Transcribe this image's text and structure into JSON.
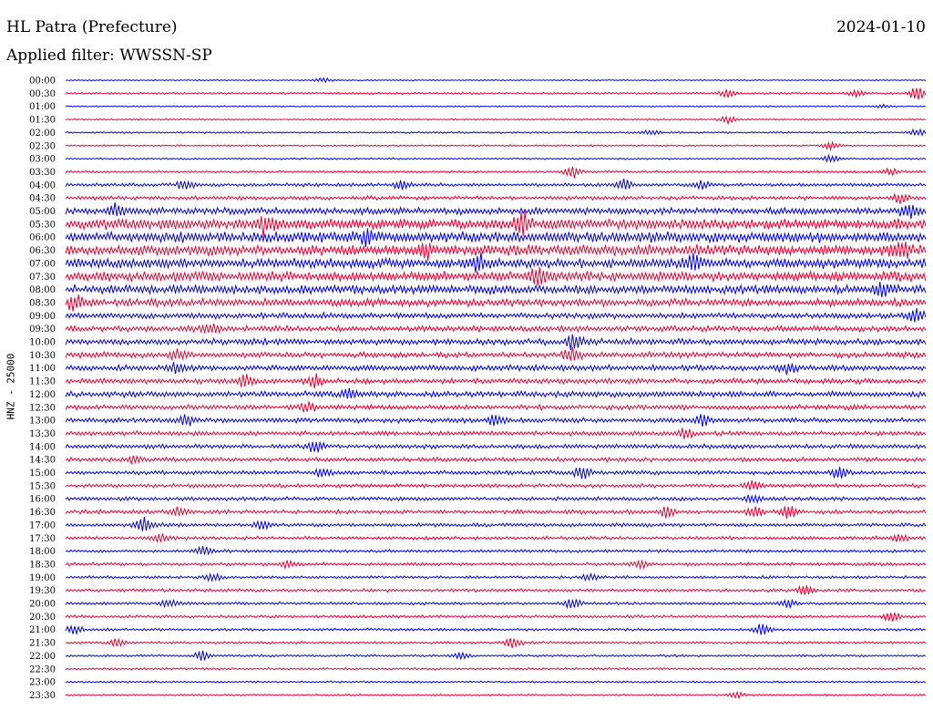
{
  "header": {
    "station": "HL Patra (Prefecture)",
    "date": "2024-01-10",
    "filter_label": "Applied filter:",
    "filter": "WWSSN-SP"
  },
  "channel": "HNZ - 25000",
  "colors": {
    "even": "#0000ee",
    "odd": "#ee0033",
    "text": "#000000"
  },
  "chart_data": {
    "type": "line",
    "title": "HL Patra (Prefecture)",
    "ylabel": "HNZ - 25000",
    "row_labels": [
      "00:00",
      "00:30",
      "01:00",
      "01:30",
      "02:00",
      "02:30",
      "03:00",
      "03:30",
      "04:00",
      "04:30",
      "05:00",
      "05:30",
      "06:00",
      "06:30",
      "07:00",
      "07:30",
      "08:00",
      "08:30",
      "09:00",
      "09:30",
      "10:00",
      "10:30",
      "11:00",
      "11:30",
      "12:00",
      "12:30",
      "13:00",
      "13:30",
      "14:00",
      "14:30",
      "15:00",
      "15:30",
      "16:00",
      "16:30",
      "17:00",
      "17:30",
      "18:00",
      "18:30",
      "19:00",
      "19:30",
      "20:00",
      "20:30",
      "21:00",
      "21:30",
      "22:00",
      "22:30",
      "23:00",
      "23:30"
    ],
    "amplitude": [
      0.7,
      1.0,
      0.6,
      0.8,
      0.9,
      0.8,
      0.9,
      1.2,
      1.8,
      2.0,
      3.5,
      5.5,
      5.5,
      5.5,
      5.0,
      5.0,
      4.5,
      4.0,
      3.0,
      3.0,
      3.2,
      3.0,
      3.0,
      2.8,
      3.0,
      2.6,
      2.5,
      2.4,
      2.3,
      2.2,
      2.1,
      2.0,
      2.0,
      2.1,
      1.9,
      1.8,
      1.6,
      1.7,
      1.5,
      1.6,
      1.5,
      1.5,
      1.4,
      1.3,
      1.2,
      1.1,
      1.0,
      0.9
    ],
    "events": [
      {
        "row": 0,
        "t": 0.3,
        "a": 2
      },
      {
        "row": 1,
        "t": 0.77,
        "a": 4
      },
      {
        "row": 1,
        "t": 0.92,
        "a": 4
      },
      {
        "row": 1,
        "t": 0.99,
        "a": 7
      },
      {
        "row": 2,
        "t": 0.95,
        "a": 2
      },
      {
        "row": 3,
        "t": 0.77,
        "a": 4
      },
      {
        "row": 4,
        "t": 0.68,
        "a": 3
      },
      {
        "row": 4,
        "t": 0.99,
        "a": 4
      },
      {
        "row": 5,
        "t": 0.89,
        "a": 5
      },
      {
        "row": 6,
        "t": 0.89,
        "a": 4
      },
      {
        "row": 7,
        "t": 0.59,
        "a": 6
      },
      {
        "row": 7,
        "t": 0.96,
        "a": 3
      },
      {
        "row": 8,
        "t": 0.14,
        "a": 5
      },
      {
        "row": 8,
        "t": 0.39,
        "a": 5
      },
      {
        "row": 8,
        "t": 0.65,
        "a": 6
      },
      {
        "row": 8,
        "t": 0.74,
        "a": 4
      },
      {
        "row": 9,
        "t": 0.97,
        "a": 5
      },
      {
        "row": 10,
        "t": 0.06,
        "a": 6
      },
      {
        "row": 10,
        "t": 0.98,
        "a": 8
      },
      {
        "row": 11,
        "t": 0.23,
        "a": 9
      },
      {
        "row": 11,
        "t": 0.53,
        "a": 12
      },
      {
        "row": 12,
        "t": 0.35,
        "a": 6
      },
      {
        "row": 13,
        "t": 0.42,
        "a": 7
      },
      {
        "row": 13,
        "t": 0.97,
        "a": 9
      },
      {
        "row": 14,
        "t": 0.48,
        "a": 8
      },
      {
        "row": 14,
        "t": 0.73,
        "a": 9
      },
      {
        "row": 15,
        "t": 0.55,
        "a": 7
      },
      {
        "row": 16,
        "t": 0.95,
        "a": 7
      },
      {
        "row": 17,
        "t": 0.01,
        "a": 6
      },
      {
        "row": 18,
        "t": 0.99,
        "a": 7
      },
      {
        "row": 19,
        "t": 0.17,
        "a": 5
      },
      {
        "row": 20,
        "t": 0.59,
        "a": 8
      },
      {
        "row": 21,
        "t": 0.13,
        "a": 5
      },
      {
        "row": 21,
        "t": 0.59,
        "a": 6
      },
      {
        "row": 22,
        "t": 0.13,
        "a": 5
      },
      {
        "row": 22,
        "t": 0.84,
        "a": 5
      },
      {
        "row": 23,
        "t": 0.21,
        "a": 6
      },
      {
        "row": 23,
        "t": 0.29,
        "a": 6
      },
      {
        "row": 24,
        "t": 0.33,
        "a": 5
      },
      {
        "row": 25,
        "t": 0.28,
        "a": 5
      },
      {
        "row": 26,
        "t": 0.14,
        "a": 5
      },
      {
        "row": 26,
        "t": 0.5,
        "a": 6
      },
      {
        "row": 26,
        "t": 0.74,
        "a": 5
      },
      {
        "row": 27,
        "t": 0.72,
        "a": 5
      },
      {
        "row": 28,
        "t": 0.29,
        "a": 6
      },
      {
        "row": 29,
        "t": 0.08,
        "a": 4
      },
      {
        "row": 30,
        "t": 0.3,
        "a": 5
      },
      {
        "row": 30,
        "t": 0.6,
        "a": 6
      },
      {
        "row": 30,
        "t": 0.9,
        "a": 6
      },
      {
        "row": 31,
        "t": 0.8,
        "a": 5
      },
      {
        "row": 32,
        "t": 0.8,
        "a": 5
      },
      {
        "row": 33,
        "t": 0.13,
        "a": 5
      },
      {
        "row": 33,
        "t": 0.7,
        "a": 5
      },
      {
        "row": 33,
        "t": 0.8,
        "a": 5
      },
      {
        "row": 33,
        "t": 0.84,
        "a": 7
      },
      {
        "row": 34,
        "t": 0.09,
        "a": 9
      },
      {
        "row": 34,
        "t": 0.23,
        "a": 5
      },
      {
        "row": 35,
        "t": 0.11,
        "a": 4
      },
      {
        "row": 35,
        "t": 0.97,
        "a": 4
      },
      {
        "row": 36,
        "t": 0.16,
        "a": 5
      },
      {
        "row": 37,
        "t": 0.26,
        "a": 4
      },
      {
        "row": 37,
        "t": 0.67,
        "a": 4
      },
      {
        "row": 38,
        "t": 0.17,
        "a": 4
      },
      {
        "row": 38,
        "t": 0.61,
        "a": 4
      },
      {
        "row": 39,
        "t": 0.86,
        "a": 5
      },
      {
        "row": 40,
        "t": 0.12,
        "a": 4
      },
      {
        "row": 40,
        "t": 0.59,
        "a": 5
      },
      {
        "row": 40,
        "t": 0.84,
        "a": 4
      },
      {
        "row": 41,
        "t": 0.96,
        "a": 5
      },
      {
        "row": 42,
        "t": 0.01,
        "a": 5
      },
      {
        "row": 42,
        "t": 0.81,
        "a": 6
      },
      {
        "row": 43,
        "t": 0.06,
        "a": 4
      },
      {
        "row": 43,
        "t": 0.52,
        "a": 6
      },
      {
        "row": 44,
        "t": 0.16,
        "a": 5
      },
      {
        "row": 44,
        "t": 0.46,
        "a": 3
      },
      {
        "row": 47,
        "t": 0.78,
        "a": 3
      }
    ]
  }
}
